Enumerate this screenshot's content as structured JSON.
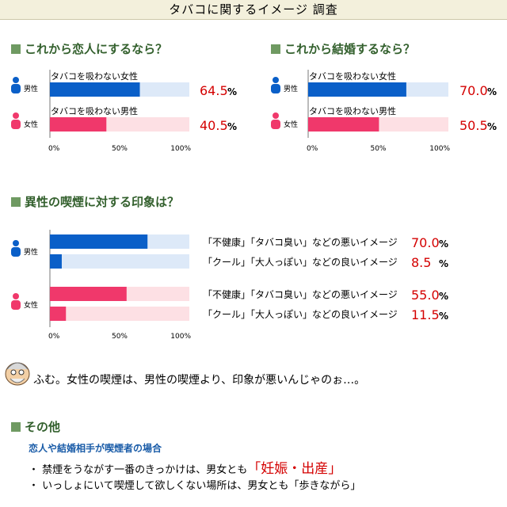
{
  "title": "タバコに関するイメージ 調査",
  "section1": {
    "heading": "これから恋人にするなら？"
  },
  "section2": {
    "heading": "これから結婚するなら？"
  },
  "section3": {
    "heading": "異性の喫煙に対する印象は？"
  },
  "section4": {
    "heading": "その他",
    "subheading": "恋人や結婚相手が喫煙者の場合",
    "bullets": [
      {
        "prefix": "・ 禁煙をうながす一番のきっかけは、男女とも",
        "highlight": "「妊娠・出産」",
        "suffix": ""
      },
      {
        "prefix": "・ いっしょにいて喫煙して欲しくない場所は、男女とも「歩きながら」",
        "highlight": "",
        "suffix": ""
      }
    ]
  },
  "comment": "ふむ。女性の喫煙は、男性の喫煙より、印象が悪いんじゃのぉ…。",
  "labels": {
    "male": "男性",
    "female": "女性",
    "pct_unit": "%"
  },
  "colors": {
    "male": "#0a5fc8",
    "male_bg": "#dde9f8",
    "female": "#f0386b",
    "female_bg": "#fde0e4",
    "value": "#d40000",
    "heading": "#33602d"
  },
  "chart_data": [
    {
      "type": "bar",
      "orientation": "horizontal",
      "title": "これから恋人にするなら？",
      "xlim": [
        0,
        100
      ],
      "ticks": [
        "0%",
        "50%",
        "100%"
      ],
      "series": [
        {
          "group": "男性",
          "label": "タバコを吸わない女性",
          "value": 64.5,
          "display": "64.5"
        },
        {
          "group": "女性",
          "label": "タバコを吸わない男性",
          "value": 40.5,
          "display": "40.5"
        }
      ]
    },
    {
      "type": "bar",
      "orientation": "horizontal",
      "title": "これから結婚するなら？",
      "xlim": [
        0,
        100
      ],
      "ticks": [
        "0%",
        "50%",
        "100%"
      ],
      "series": [
        {
          "group": "男性",
          "label": "タバコを吸わない女性",
          "value": 70.0,
          "display": "70.0"
        },
        {
          "group": "女性",
          "label": "タバコを吸わない男性",
          "value": 50.5,
          "display": "50.5"
        }
      ]
    },
    {
      "type": "bar",
      "orientation": "horizontal",
      "title": "異性の喫煙に対する印象は？",
      "xlim": [
        0,
        100
      ],
      "ticks": [
        "0%",
        "50%",
        "100%"
      ],
      "series": [
        {
          "group": "男性",
          "label": "「不健康」「タバコ臭い」などの悪いイメージ",
          "value": 70.0,
          "display": "70.0"
        },
        {
          "group": "男性",
          "label": "「クール」「大人っぽい」などの良いイメージ",
          "value": 8.5,
          "display": "8.5"
        },
        {
          "group": "女性",
          "label": "「不健康」「タバコ臭い」などの悪いイメージ",
          "value": 55.0,
          "display": "55.0"
        },
        {
          "group": "女性",
          "label": "「クール」「大人っぽい」などの良いイメージ",
          "value": 11.5,
          "display": "11.5"
        }
      ]
    }
  ]
}
